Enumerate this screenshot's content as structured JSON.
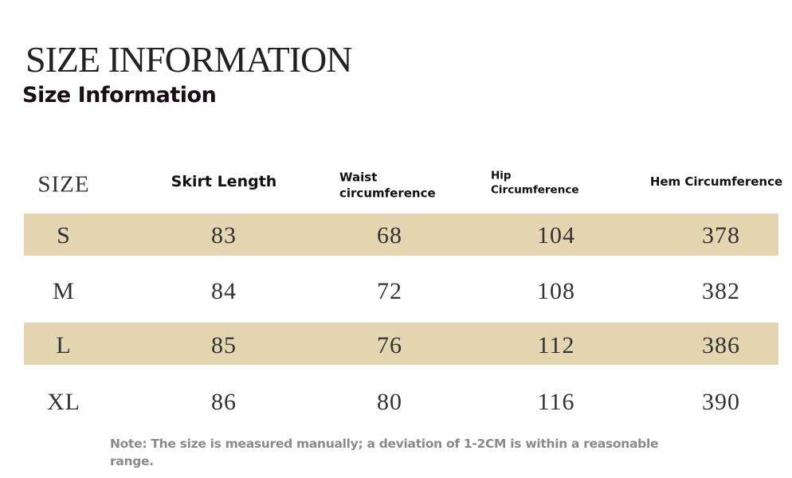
{
  "title": "SIZE INFORMATION",
  "subtitle": "Size Information",
  "table": {
    "headers": [
      "SIZE",
      "Skirt Length",
      "Waist circumference",
      "Hip Circumference",
      "Hem Circumference"
    ],
    "header_lines": {
      "waist": [
        "Waist",
        "circumference"
      ],
      "hip": [
        "Hip",
        "Circumference"
      ]
    },
    "rows": [
      [
        "S",
        "83",
        "68",
        "104",
        "378"
      ],
      [
        "M",
        "84",
        "72",
        "108",
        "382"
      ],
      [
        "L",
        "85",
        "76",
        "112",
        "386"
      ],
      [
        "XL",
        "86",
        "80",
        "116",
        "390"
      ]
    ],
    "band_color": "#e3d6b0"
  },
  "note": "Note: The size is measured manually; a deviation of 1-2CM is within a reasonable range."
}
